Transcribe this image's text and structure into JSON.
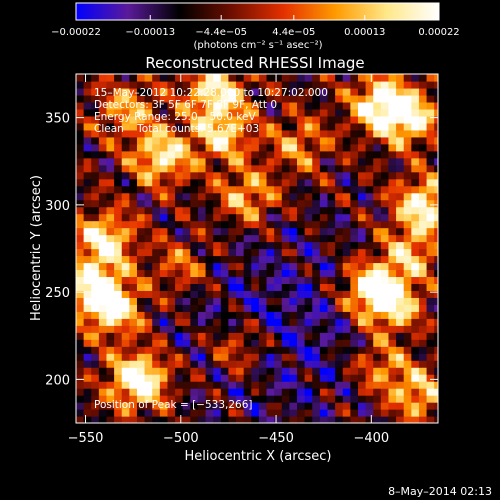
{
  "chart_data": {
    "type": "heatmap",
    "title": "Reconstructed RHESSI Image",
    "xlabel": "Heliocentric X (arcsec)",
    "ylabel": "Heliocentric Y (arcsec)",
    "xlim": [
      -555,
      -365
    ],
    "ylim": [
      175,
      375
    ],
    "xticks": [
      -550,
      -500,
      -450,
      -400
    ],
    "yticks": [
      200,
      250,
      300,
      350
    ],
    "xtick_labels": [
      "−550",
      "−500",
      "−450",
      "−400"
    ],
    "ytick_labels": [
      "200",
      "250",
      "300",
      "350"
    ],
    "colorbar": {
      "ticks": [
        -0.00022,
        -0.00013,
        -4.4e-05,
        4.4e-05,
        0.00013,
        0.00022
      ],
      "tick_labels": [
        "−0.00022",
        "−0.00013",
        "−4.4e−05",
        "4.4e−05",
        "0.00013",
        "0.00022"
      ],
      "unit": "(photons cm⁻² s⁻¹ asec⁻²)",
      "range": [
        -0.00022,
        0.00022
      ],
      "colors": [
        "#0000ff",
        "#5a1a9a",
        "#000000",
        "#6e0e00",
        "#e43000",
        "#ff9a00",
        "#ffe88a",
        "#ffffff"
      ]
    },
    "annotations": [
      "15–May–2012 10:22:28.000 to 10:27:02.000",
      "Detectors: 3F 5F 6F 7F 8F 9F, Att 0",
      "Energy Range: 25.0 – 50.0 keV",
      "Clean    Total counts: 5.67E+03"
    ],
    "peak_label": "Position of Peak = [−533,266]",
    "sources": [
      {
        "x": -522,
        "y": 200,
        "strength": 1.25
      },
      {
        "x": -540,
        "y": 280,
        "strength": 0.95
      },
      {
        "x": -545,
        "y": 253,
        "strength": 0.9
      },
      {
        "x": -535,
        "y": 240,
        "strength": 0.85
      },
      {
        "x": -510,
        "y": 328,
        "strength": 0.9
      },
      {
        "x": -478,
        "y": 340,
        "strength": 0.75
      },
      {
        "x": -482,
        "y": 365,
        "strength": 0.9
      },
      {
        "x": -465,
        "y": 305,
        "strength": 0.7
      },
      {
        "x": -438,
        "y": 335,
        "strength": 0.55
      },
      {
        "x": -395,
        "y": 358,
        "strength": 1.0
      },
      {
        "x": -380,
        "y": 350,
        "strength": 0.85
      },
      {
        "x": -372,
        "y": 300,
        "strength": 1.0
      },
      {
        "x": -400,
        "y": 252,
        "strength": 1.05
      },
      {
        "x": -388,
        "y": 242,
        "strength": 0.8
      },
      {
        "x": -380,
        "y": 272,
        "strength": 0.7
      },
      {
        "x": -470,
        "y": 218,
        "strength": 0.55
      },
      {
        "x": -528,
        "y": 355,
        "strength": 0.6
      },
      {
        "x": -375,
        "y": 192,
        "strength": 0.75
      },
      {
        "x": -395,
        "y": 208,
        "strength": 0.6
      },
      {
        "x": -500,
        "y": 265,
        "strength": 0.5
      }
    ]
  },
  "footer": {
    "date_stamp": "8–May–2014 02:13"
  }
}
